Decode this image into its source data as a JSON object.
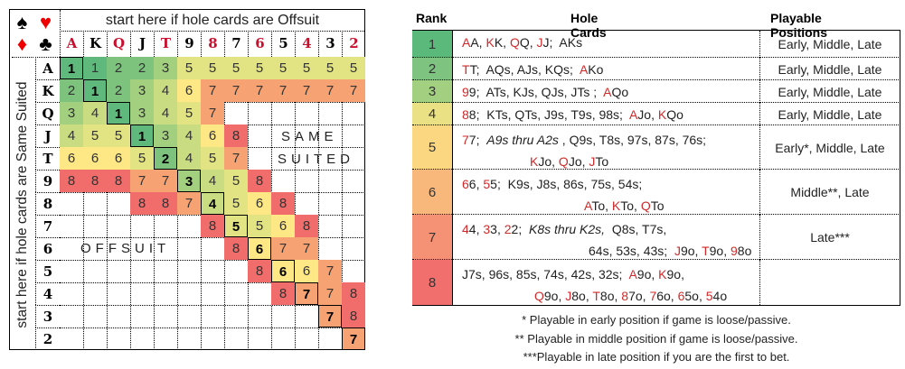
{
  "grid": {
    "suits": {
      "spade": "♠",
      "heart": "♥",
      "diamond": "♦",
      "club": "♣"
    },
    "top_label": "start here if hole cards are Offsuit",
    "side_label": "start here if hole cards are Same Suited",
    "same_suited_label": [
      "SAME",
      "SUITED"
    ],
    "offsuit_label": "OFFSUIT",
    "ranks": [
      "A",
      "K",
      "Q",
      "J",
      "T",
      "9",
      "8",
      "7",
      "6",
      "5",
      "4",
      "3",
      "2"
    ],
    "red_ranks": [
      "A",
      "Q",
      "T",
      "8",
      "6",
      "4",
      "2"
    ],
    "values": [
      [
        "1",
        "1",
        "2",
        "2",
        "3",
        "5",
        "5",
        "5",
        "5",
        "5",
        "5",
        "5",
        "5"
      ],
      [
        "2",
        "1",
        "2",
        "3",
        "4",
        "6",
        "7",
        "7",
        "7",
        "7",
        "7",
        "7",
        "7"
      ],
      [
        "3",
        "4",
        "1",
        "3",
        "4",
        "5",
        "7",
        "",
        "",
        "",
        "",
        "",
        ""
      ],
      [
        "4",
        "5",
        "5",
        "1",
        "3",
        "4",
        "6",
        "8",
        "",
        "",
        "",
        "",
        ""
      ],
      [
        "6",
        "6",
        "6",
        "5",
        "2",
        "4",
        "5",
        "7",
        "",
        "",
        "",
        "",
        ""
      ],
      [
        "8",
        "8",
        "8",
        "7",
        "7",
        "3",
        "4",
        "5",
        "8",
        "",
        "",
        "",
        ""
      ],
      [
        "",
        "",
        "",
        "8",
        "8",
        "7",
        "4",
        "5",
        "6",
        "8",
        "",
        "",
        ""
      ],
      [
        "",
        "",
        "",
        "",
        "",
        "",
        "8",
        "5",
        "5",
        "6",
        "8",
        "",
        ""
      ],
      [
        "",
        "",
        "",
        "",
        "",
        "",
        "",
        "8",
        "6",
        "7",
        "7",
        "",
        ""
      ],
      [
        "",
        "",
        "",
        "",
        "",
        "",
        "",
        "",
        "8",
        "6",
        "6",
        "7",
        ""
      ],
      [
        "",
        "",
        "",
        "",
        "",
        "",
        "",
        "",
        "",
        "8",
        "7",
        "7",
        "8"
      ],
      [
        "",
        "",
        "",
        "",
        "",
        "",
        "",
        "",
        "",
        "",
        "",
        "7",
        "8"
      ],
      [
        "",
        "",
        "",
        "",
        "",
        "",
        "",
        "",
        "",
        "",
        "",
        "",
        "7"
      ]
    ]
  },
  "colors": {
    "1": "#5fb97c",
    "2": "#7dc37e",
    "3": "#a3d07f",
    "4": "#c9dc82",
    "5": "#e2e383",
    "6": "#fde885",
    "7": "#f7a272",
    "8": "#f06d6c"
  },
  "rank_colors": {
    "1": "#5cb97c",
    "2": "#7ec380",
    "3": "#a2cf80",
    "4": "#e9e183",
    "5": "#fcd781",
    "6": "#f9b87b",
    "7": "#f59174",
    "8": "#f1706e"
  },
  "table": {
    "headers": {
      "rank": "Rank",
      "hole_cards": "Hole Cards",
      "positions": "Playable Positions"
    },
    "rows": [
      {
        "rank": "1",
        "positions": "Early, Middle, Late",
        "lines": [
          [
            {
              "t": "A",
              "red": true
            },
            {
              "t": "A, "
            },
            {
              "t": "K",
              "red": true
            },
            {
              "t": "K, "
            },
            {
              "t": "Q",
              "red": true
            },
            {
              "t": "Q, "
            },
            {
              "t": "J",
              "red": true
            },
            {
              "t": "J;  AKs"
            }
          ]
        ]
      },
      {
        "rank": "2",
        "positions": "Early, Middle, Late",
        "lines": [
          [
            {
              "t": "T",
              "red": true
            },
            {
              "t": "T;  AQs, AJs, KQs;  "
            },
            {
              "t": "A",
              "red": true
            },
            {
              "t": "Ko"
            }
          ]
        ]
      },
      {
        "rank": "3",
        "positions": "Early, Middle, Late",
        "lines": [
          [
            {
              "t": "9",
              "red": true
            },
            {
              "t": "9;  ATs, KJs, QJs, JTs ;  "
            },
            {
              "t": "A",
              "red": true
            },
            {
              "t": "Qo"
            }
          ]
        ]
      },
      {
        "rank": "4",
        "positions": "Early, Middle, Late",
        "lines": [
          [
            {
              "t": "8",
              "red": true
            },
            {
              "t": "8;  KTs, QTs, J9s, T9s, 98s;  "
            },
            {
              "t": "A",
              "red": true
            },
            {
              "t": "Jo, "
            },
            {
              "t": "K",
              "red": true
            },
            {
              "t": "Qo"
            }
          ]
        ]
      },
      {
        "rank": "5",
        "positions": "Early*, Middle, Late",
        "lines": [
          [
            {
              "t": "7",
              "red": true
            },
            {
              "t": "7;  "
            },
            {
              "t": "A9s thru A2s",
              "it": true
            },
            {
              "t": " , Q9s, T8s, 97s, 87s, 76s;"
            }
          ],
          [
            {
              "t": "K",
              "red": true
            },
            {
              "t": "Jo, "
            },
            {
              "t": "Q",
              "red": true
            },
            {
              "t": "Jo, "
            },
            {
              "t": "J",
              "red": true
            },
            {
              "t": "To"
            }
          ]
        ]
      },
      {
        "rank": "6",
        "positions": "Middle**, Late",
        "lines": [
          [
            {
              "t": "6",
              "red": true
            },
            {
              "t": "6, "
            },
            {
              "t": "5",
              "red": true
            },
            {
              "t": "5;  K9s, J8s, 86s, 75s, 54s;"
            }
          ],
          [
            {
              "t": "A",
              "red": true
            },
            {
              "t": "To, "
            },
            {
              "t": "K",
              "red": true
            },
            {
              "t": "To, "
            },
            {
              "t": "Q",
              "red": true
            },
            {
              "t": "To"
            }
          ]
        ]
      },
      {
        "rank": "7",
        "positions": "Late***",
        "lines": [
          [
            {
              "t": "4",
              "red": true
            },
            {
              "t": "4, "
            },
            {
              "t": "3",
              "red": true
            },
            {
              "t": "3, "
            },
            {
              "t": "2",
              "red": true
            },
            {
              "t": "2;  "
            },
            {
              "t": "K8s thru K2s,",
              "it": true
            },
            {
              "t": "  Q8s, T7s,"
            }
          ],
          [
            {
              "t": "64s, 53s, 43s;  "
            },
            {
              "t": "J",
              "red": true
            },
            {
              "t": "9o, "
            },
            {
              "t": "T",
              "red": true
            },
            {
              "t": "9o, "
            },
            {
              "t": "9",
              "red": true
            },
            {
              "t": "8o"
            }
          ]
        ]
      },
      {
        "rank": "8",
        "positions": "",
        "lines": [
          [
            {
              "t": "J7s, 96s, 85s, 74s, 42s, 32s;  "
            },
            {
              "t": "A",
              "red": true
            },
            {
              "t": "9o, "
            },
            {
              "t": "K",
              "red": true
            },
            {
              "t": "9o,"
            }
          ],
          [
            {
              "t": "Q",
              "red": true
            },
            {
              "t": "9o, "
            },
            {
              "t": "J",
              "red": true
            },
            {
              "t": "8o, "
            },
            {
              "t": "T",
              "red": true
            },
            {
              "t": "8o, "
            },
            {
              "t": "8",
              "red": true
            },
            {
              "t": "7o, "
            },
            {
              "t": "7",
              "red": true
            },
            {
              "t": "6o, "
            },
            {
              "t": "6",
              "red": true
            },
            {
              "t": "5o, "
            },
            {
              "t": "5",
              "red": true
            },
            {
              "t": "4o"
            }
          ]
        ]
      }
    ]
  },
  "footnotes": [
    "* Playable in early position if game is loose/passive.",
    "** Playable in middle position if game is loose/passive.",
    "***Playable in late position if you are the first to bet."
  ]
}
